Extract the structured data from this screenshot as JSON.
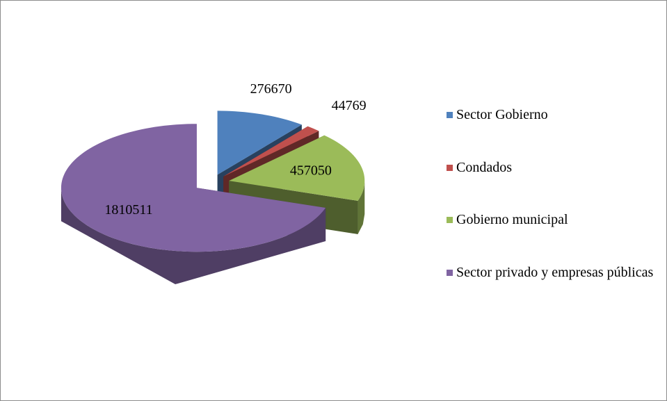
{
  "chart_data": {
    "type": "pie3d",
    "categories": [
      "Sector Gobierno",
      "Condados",
      "Gobierno municipal",
      "Sector privado y empresas públicas"
    ],
    "values": [
      276670,
      44769,
      457050,
      1810511
    ],
    "colors": [
      "#4f81bd",
      "#c0504d",
      "#9bbb59",
      "#8064a2"
    ],
    "exploded": true,
    "legend": "right"
  }
}
